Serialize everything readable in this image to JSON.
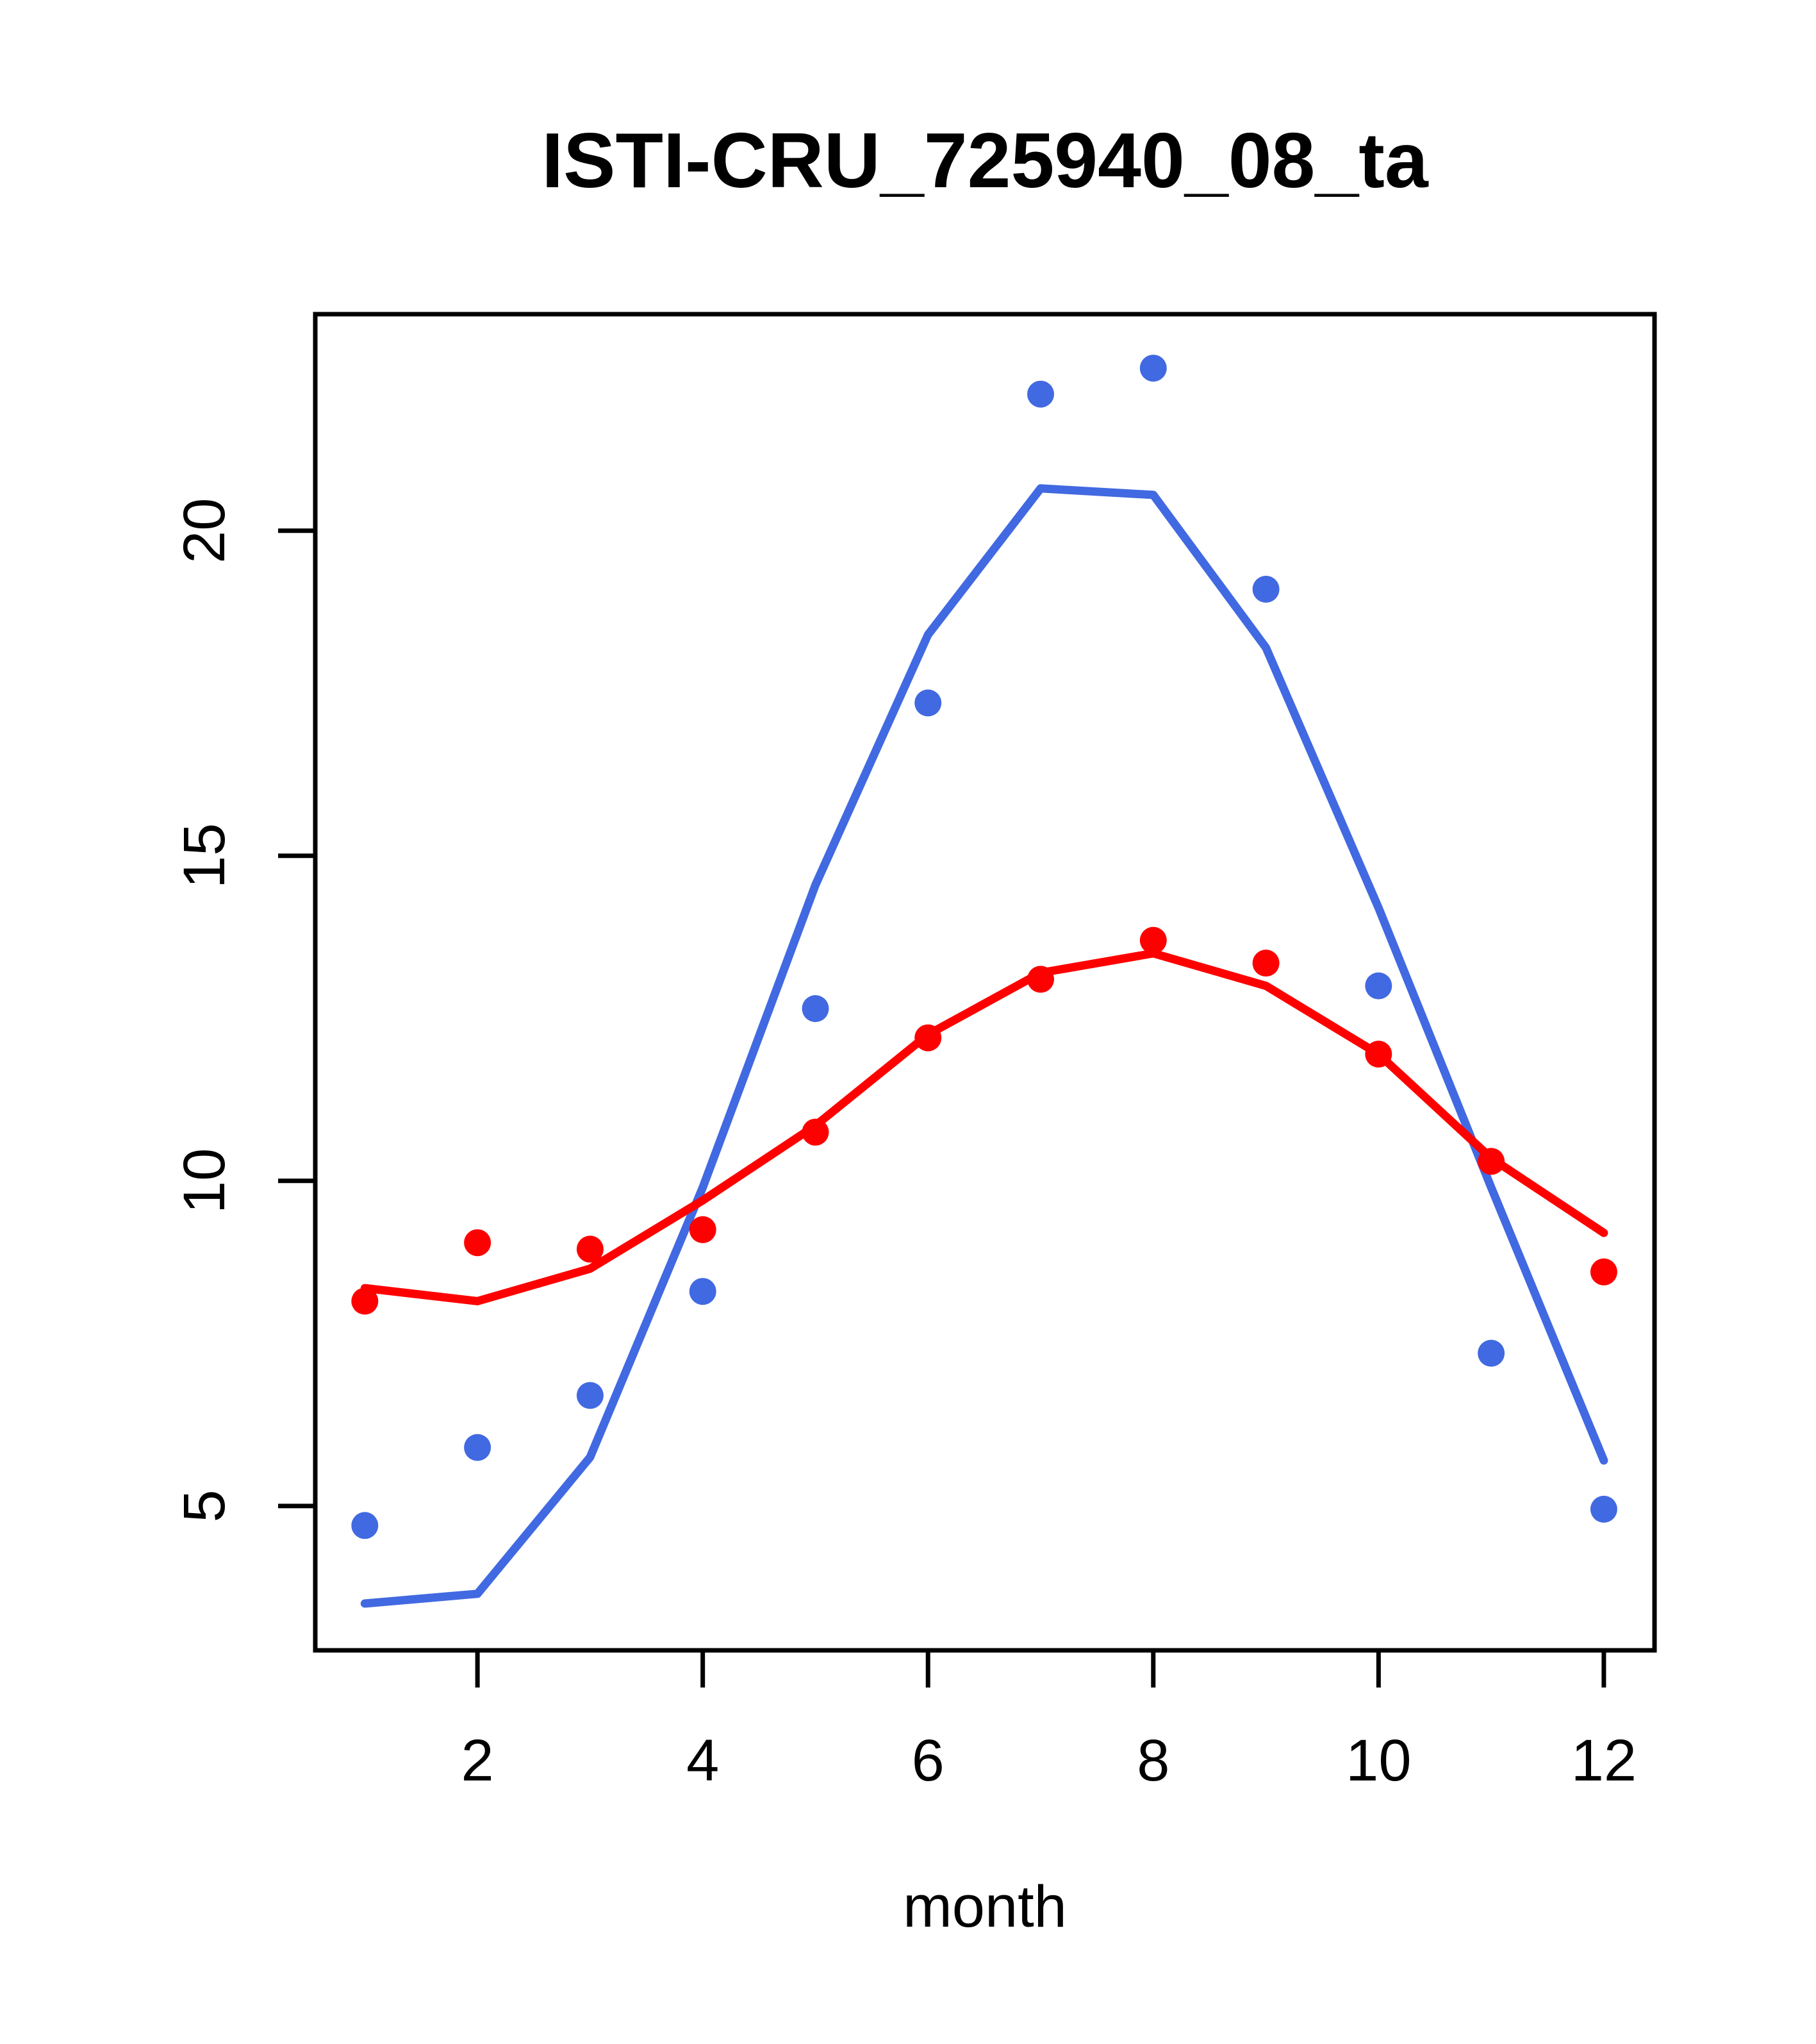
{
  "title": "ISTI-CRU_725940_08_ta",
  "background_color": "#ffffff",
  "text_color": "#000000",
  "chart_data": {
    "type": "line",
    "title": "ISTI-CRU_725940_08_ta",
    "xlabel": "month",
    "ylabel": "",
    "x": [
      1,
      2,
      3,
      4,
      5,
      6,
      7,
      8,
      9,
      10,
      11,
      12
    ],
    "xticks": [
      2,
      4,
      6,
      8,
      10,
      12
    ],
    "yticks": [
      5,
      10,
      15,
      20
    ],
    "xlim": [
      0.56,
      12.45
    ],
    "ylim": [
      2.78,
      23.33
    ],
    "grid": false,
    "legend": "none",
    "series": [
      {
        "name": "blue-points",
        "draw": "scatter",
        "color": "#4169E1",
        "values": [
          4.7,
          5.9,
          6.7,
          8.3,
          12.65,
          17.35,
          22.1,
          22.5,
          19.1,
          13.0,
          7.35,
          4.95
        ]
      },
      {
        "name": "blue-smooth-line",
        "draw": "line",
        "color": "#4169E1",
        "values": [
          3.5,
          3.65,
          5.75,
          9.9,
          14.55,
          18.4,
          20.65,
          20.55,
          18.2,
          14.2,
          9.9,
          5.7
        ]
      },
      {
        "name": "red-points",
        "draw": "scatter",
        "color": "#FF0000",
        "values": [
          8.15,
          9.05,
          8.95,
          9.25,
          10.75,
          12.2,
          13.1,
          13.7,
          13.35,
          11.95,
          10.3,
          8.6
        ]
      },
      {
        "name": "red-smooth-line",
        "draw": "line",
        "color": "#FF0000",
        "values": [
          8.35,
          8.15,
          8.65,
          9.7,
          10.85,
          12.25,
          13.2,
          13.5,
          13.0,
          11.95,
          10.35,
          9.2
        ]
      }
    ]
  }
}
